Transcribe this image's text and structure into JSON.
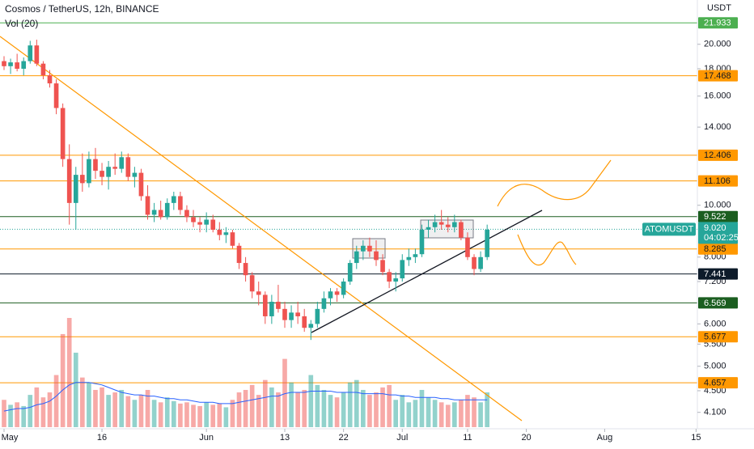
{
  "chart_data": {
    "type": "candlestick",
    "title": "Cosmos / TetherUS, 12h, BINANCE",
    "subtitle": "Vol (20)",
    "y_axis_label": "USDT",
    "log_scale": true,
    "up_color": "#26a69a",
    "down_color": "#ef5350",
    "volume_ma_color": "#2962ff",
    "ylim": [
      3.82,
      24.2
    ],
    "yticks": [
      {
        "value": 4.1,
        "label": "4.100"
      },
      {
        "value": 4.5,
        "label": "4.500"
      },
      {
        "value": 5,
        "label": "5.000"
      },
      {
        "value": 5.5,
        "label": "5.500"
      },
      {
        "value": 6,
        "label": "6.000"
      },
      {
        "value": 7.2,
        "label": "7.200"
      },
      {
        "value": 8,
        "label": "8.000"
      },
      {
        "value": 10,
        "label": "10.000"
      },
      {
        "value": 14,
        "label": "14.000"
      },
      {
        "value": 16,
        "label": "16.000"
      },
      {
        "value": 18,
        "label": "18.000"
      },
      {
        "value": 20,
        "label": "20.000"
      }
    ],
    "xlim": [
      -0.62,
      106.2
    ],
    "xticks": [
      {
        "value": 0,
        "label": "May"
      },
      {
        "value": 15,
        "label": "16"
      },
      {
        "value": 31,
        "label": "Jun"
      },
      {
        "value": 43,
        "label": "13"
      },
      {
        "value": 52,
        "label": "22"
      },
      {
        "value": 61,
        "label": "Jul"
      },
      {
        "value": 71,
        "label": "11"
      },
      {
        "value": 80,
        "label": "20"
      },
      {
        "value": 92,
        "label": "Aug"
      },
      {
        "value": 106,
        "label": "15"
      }
    ],
    "x": [
      0,
      1,
      2,
      3,
      4,
      5,
      6,
      7,
      8,
      9,
      10,
      11,
      12,
      13,
      14,
      15,
      16,
      17,
      18,
      19,
      20,
      21,
      22,
      23,
      24,
      25,
      26,
      27,
      28,
      29,
      30,
      31,
      32,
      33,
      34,
      35,
      36,
      37,
      38,
      39,
      40,
      41,
      42,
      43,
      44,
      45,
      46,
      47,
      48,
      49,
      50,
      51,
      52,
      53,
      54,
      55,
      56,
      57,
      58,
      59,
      60,
      61,
      62,
      63,
      64,
      65,
      66,
      67,
      68,
      69,
      70,
      71,
      72,
      73,
      74
    ],
    "candles": [
      [
        18.6,
        19.0,
        17.9,
        18.2
      ],
      [
        18.2,
        18.8,
        17.6,
        18.5
      ],
      [
        18.5,
        19.2,
        17.8,
        18.0
      ],
      [
        18.0,
        18.9,
        17.5,
        18.6
      ],
      [
        18.6,
        20.3,
        18.4,
        19.9
      ],
      [
        19.9,
        20.4,
        18.2,
        18.4
      ],
      [
        18.4,
        18.6,
        17.2,
        17.5
      ],
      [
        17.5,
        17.9,
        16.6,
        16.9
      ],
      [
        16.9,
        17.2,
        14.8,
        15.2
      ],
      [
        15.2,
        15.5,
        11.8,
        12.2
      ],
      [
        12.2,
        13.0,
        9.2,
        10.1
      ],
      [
        10.1,
        11.8,
        9.0,
        11.4
      ],
      [
        11.4,
        12.5,
        10.6,
        11.0
      ],
      [
        11.0,
        12.6,
        10.8,
        12.2
      ],
      [
        12.2,
        12.8,
        11.2,
        11.6
      ],
      [
        11.6,
        12.0,
        10.9,
        11.3
      ],
      [
        11.3,
        12.1,
        10.7,
        11.8
      ],
      [
        11.8,
        12.5,
        11.4,
        11.7
      ],
      [
        11.7,
        12.6,
        11.5,
        12.3
      ],
      [
        12.3,
        12.5,
        11.1,
        11.3
      ],
      [
        11.3,
        11.8,
        10.8,
        11.5
      ],
      [
        11.5,
        11.7,
        10.2,
        10.4
      ],
      [
        10.4,
        10.9,
        9.4,
        9.6
      ],
      [
        9.6,
        10.1,
        9.3,
        9.8
      ],
      [
        9.8,
        10.2,
        9.4,
        9.5
      ],
      [
        9.5,
        10.3,
        9.4,
        10.1
      ],
      [
        10.1,
        10.6,
        9.8,
        10.4
      ],
      [
        10.4,
        10.6,
        9.6,
        9.8
      ],
      [
        9.8,
        10.0,
        9.3,
        9.5
      ],
      [
        9.5,
        9.8,
        9.1,
        9.3
      ],
      [
        9.3,
        9.5,
        8.9,
        9.2
      ],
      [
        9.2,
        9.7,
        8.9,
        9.4
      ],
      [
        9.4,
        9.6,
        8.9,
        9.0
      ],
      [
        9.0,
        9.3,
        8.6,
        8.8
      ],
      [
        8.8,
        9.1,
        8.5,
        8.9
      ],
      [
        8.9,
        9.0,
        8.3,
        8.4
      ],
      [
        8.4,
        8.5,
        7.6,
        7.8
      ],
      [
        7.8,
        8.0,
        7.2,
        7.4
      ],
      [
        7.4,
        7.5,
        6.7,
        6.9
      ],
      [
        6.9,
        7.2,
        6.5,
        6.8
      ],
      [
        6.8,
        6.9,
        6.0,
        6.2
      ],
      [
        6.2,
        6.8,
        6.0,
        6.6
      ],
      [
        6.6,
        7.1,
        6.3,
        6.4
      ],
      [
        6.4,
        6.6,
        5.9,
        6.1
      ],
      [
        6.1,
        6.5,
        5.9,
        6.3
      ],
      [
        6.3,
        6.6,
        6.0,
        6.2
      ],
      [
        6.2,
        6.4,
        5.8,
        5.9
      ],
      [
        5.9,
        6.1,
        5.6,
        6.0
      ],
      [
        6.0,
        6.6,
        5.9,
        6.4
      ],
      [
        6.4,
        6.9,
        6.3,
        6.7
      ],
      [
        6.7,
        7.0,
        6.5,
        6.9
      ],
      [
        6.9,
        7.0,
        6.6,
        6.8
      ],
      [
        6.8,
        7.3,
        6.7,
        7.2
      ],
      [
        7.2,
        7.9,
        7.1,
        7.8
      ],
      [
        7.8,
        8.4,
        7.6,
        8.2
      ],
      [
        8.2,
        8.6,
        7.9,
        8.4
      ],
      [
        8.4,
        8.7,
        8.0,
        8.2
      ],
      [
        8.2,
        8.6,
        7.7,
        7.9
      ],
      [
        7.9,
        8.1,
        7.4,
        7.5
      ],
      [
        7.5,
        7.6,
        7.0,
        7.2
      ],
      [
        7.2,
        7.5,
        6.9,
        7.3
      ],
      [
        7.3,
        8.1,
        7.2,
        7.9
      ],
      [
        7.9,
        8.3,
        7.7,
        8.0
      ],
      [
        8.0,
        8.3,
        7.8,
        8.1
      ],
      [
        8.1,
        9.2,
        8.0,
        9.0
      ],
      [
        9.0,
        9.4,
        8.7,
        9.1
      ],
      [
        9.1,
        9.6,
        8.9,
        9.3
      ],
      [
        9.3,
        9.8,
        9.0,
        9.2
      ],
      [
        9.2,
        9.5,
        8.9,
        9.1
      ],
      [
        9.1,
        9.6,
        8.9,
        9.3
      ],
      [
        9.3,
        9.4,
        8.6,
        8.7
      ],
      [
        8.7,
        8.9,
        7.9,
        8.0
      ],
      [
        8.0,
        8.1,
        7.4,
        7.6
      ],
      [
        7.6,
        8.2,
        7.5,
        8.0
      ],
      [
        8.0,
        9.2,
        7.9,
        9.0
      ]
    ],
    "volume": [
      2.2,
      1.8,
      2.0,
      1.7,
      2.6,
      3.2,
      2.4,
      2.8,
      4.2,
      7.5,
      8.8,
      6.0,
      4.0,
      3.6,
      3.0,
      3.2,
      2.6,
      2.8,
      3.0,
      2.5,
      2.2,
      2.6,
      3.0,
      2.2,
      2.0,
      2.4,
      2.1,
      1.9,
      2.0,
      1.8,
      1.7,
      2.0,
      1.8,
      1.9,
      1.6,
      2.2,
      2.8,
      3.0,
      3.4,
      2.6,
      3.8,
      3.2,
      2.8,
      5.5,
      3.6,
      2.8,
      3.0,
      4.2,
      3.4,
      3.0,
      2.6,
      2.4,
      2.8,
      3.6,
      3.8,
      3.0,
      2.6,
      2.8,
      3.2,
      3.4,
      2.2,
      2.6,
      2.0,
      2.2,
      3.0,
      2.4,
      2.2,
      2.0,
      1.8,
      2.0,
      2.2,
      2.6,
      2.4,
      2.0,
      2.8
    ],
    "volume_ma": [
      1.3,
      1.4,
      1.5,
      1.5,
      1.6,
      1.8,
      1.9,
      2.1,
      2.5,
      3.0,
      3.4,
      3.6,
      3.6,
      3.6,
      3.5,
      3.4,
      3.2,
      3.0,
      2.8,
      2.7,
      2.6,
      2.6,
      2.5,
      2.5,
      2.4,
      2.3,
      2.3,
      2.2,
      2.2,
      2.1,
      2.0,
      2.0,
      2.0,
      1.9,
      1.9,
      1.9,
      2.0,
      2.1,
      2.2,
      2.3,
      2.4,
      2.5,
      2.5,
      2.7,
      2.8,
      2.8,
      2.8,
      2.9,
      2.9,
      2.9,
      2.9,
      2.8,
      2.8,
      2.8,
      2.8,
      2.7,
      2.7,
      2.7,
      2.7,
      2.6,
      2.6,
      2.5,
      2.5,
      2.4,
      2.4,
      2.4,
      2.4,
      2.3,
      2.3,
      2.2,
      2.2,
      2.2,
      2.2,
      2.2,
      2.2
    ],
    "levels": [
      {
        "value": 21.933,
        "color": "#4caf50",
        "text_color": "#ffffff"
      },
      {
        "value": 17.468,
        "color": "#ff9800",
        "text_color": "#131722"
      },
      {
        "value": 12.406,
        "color": "#ff9800",
        "text_color": "#131722"
      },
      {
        "value": 11.106,
        "color": "#ff9800",
        "text_color": "#131722"
      },
      {
        "value": 9.522,
        "color": "#1b5e20",
        "text_color": "#ffffff"
      },
      {
        "value": 8.285,
        "color": "#ff9800",
        "text_color": "#131722"
      },
      {
        "value": 7.441,
        "color": "#0d1b2a",
        "text_color": "#ffffff"
      },
      {
        "value": 6.569,
        "color": "#1b5e20",
        "text_color": "#ffffff"
      },
      {
        "value": 5.677,
        "color": "#ff9800",
        "text_color": "#131722"
      },
      {
        "value": 4.657,
        "color": "#ff9800",
        "text_color": "#131722"
      }
    ],
    "last_price": {
      "symbol": "ATOMUSDT",
      "value": 9.02,
      "value_label": "9.020",
      "countdown": "04:02:25",
      "color": "#26a69a"
    }
  }
}
